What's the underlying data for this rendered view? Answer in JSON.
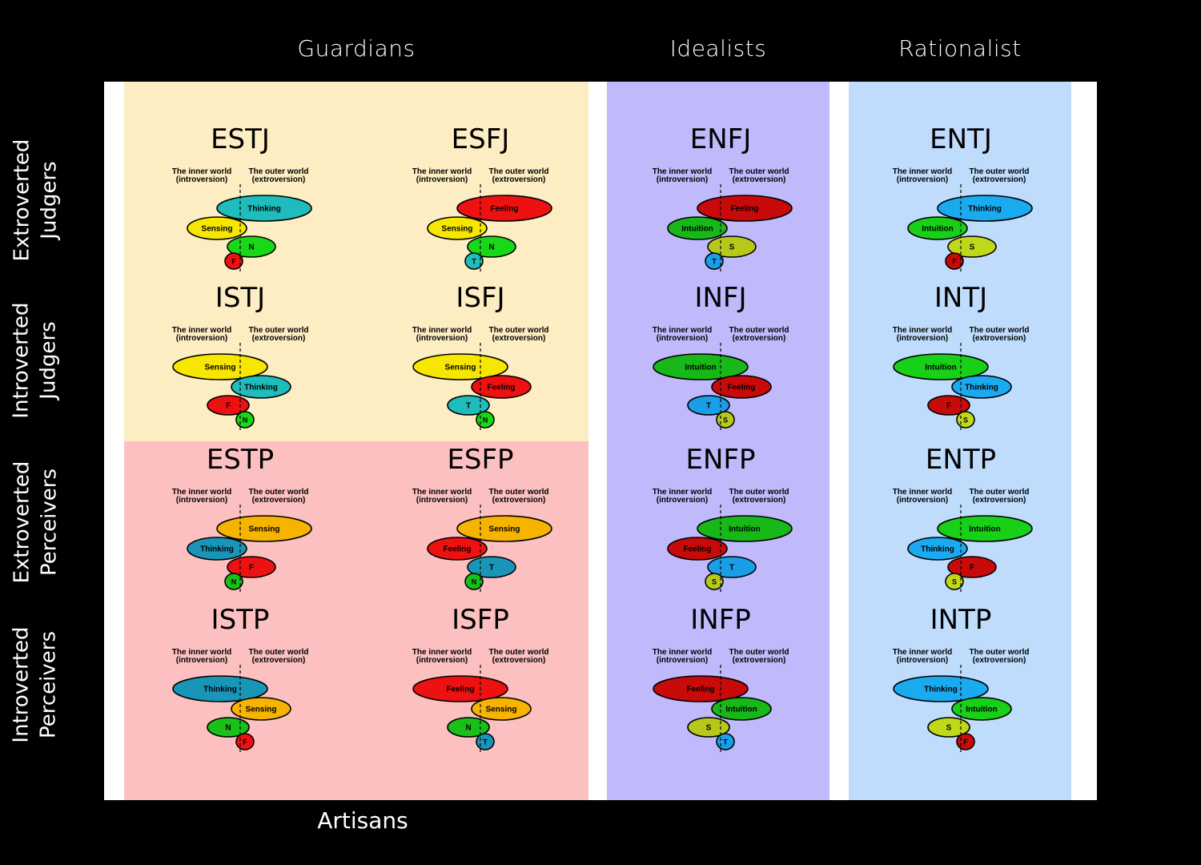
{
  "columns": {
    "guardians": "Guardians",
    "idealists": "Idealists",
    "rationalist": "Rationalist",
    "artisans": "Artisans"
  },
  "rows": [
    {
      "line1": "Extroverted",
      "line2": "Judgers"
    },
    {
      "line1": "Introverted",
      "line2": "Judgers"
    },
    {
      "line1": "Extroverted",
      "line2": "Perceivers"
    },
    {
      "line1": "Introverted",
      "line2": "Perceivers"
    }
  ],
  "world_labels": {
    "inner_line1": "The inner world",
    "inner_line2": "(introversion)",
    "outer_line1": "The outer world",
    "outer_line2": "(extroversion)"
  },
  "function_colors": {
    "Thinking": "#1fbcbc",
    "Sensing": "#f6e600",
    "Intuition": "#18d818",
    "Feeling": "#ee1111",
    "T": "#1fbcbc",
    "S": "#f6e600",
    "N": "#18d818",
    "F": "#ee1111"
  },
  "zone_colors": {
    "guardians": "#fdedc3",
    "artisans": "#fdc0c0",
    "idealists": "#c0bafd",
    "rationalist": "#c0dcfd"
  },
  "palettes": {
    "guardians": {
      "T": "#1fbcbc",
      "S": "#f6e600",
      "N": "#18d818",
      "F": "#ee1111"
    },
    "artisans": {
      "T": "#1995b8",
      "S": "#f6b400",
      "N": "#18c018",
      "F": "#ee1111"
    },
    "idealists": {
      "T": "#1a9ee8",
      "S": "#b8c81a",
      "N": "#18b818",
      "F": "#c80a0a"
    },
    "rationalist": {
      "T": "#1aaaf0",
      "S": "#c0d81a",
      "N": "#18d018",
      "F": "#c80a0a"
    }
  },
  "types": [
    {
      "code": "ESTJ",
      "group": "guardians",
      "dominant": {
        "label": "Thinking",
        "fn": "T",
        "side": "outer"
      },
      "auxiliary": {
        "label": "Sensing",
        "fn": "S",
        "side": "inner"
      },
      "tertiary": {
        "label": "N",
        "fn": "N",
        "side": "outer"
      },
      "inferior": {
        "label": "F",
        "fn": "F",
        "side": "inner"
      }
    },
    {
      "code": "ESFJ",
      "group": "guardians",
      "dominant": {
        "label": "Feeling",
        "fn": "F",
        "side": "outer"
      },
      "auxiliary": {
        "label": "Sensing",
        "fn": "S",
        "side": "inner"
      },
      "tertiary": {
        "label": "N",
        "fn": "N",
        "side": "outer"
      },
      "inferior": {
        "label": "T",
        "fn": "T",
        "side": "inner"
      }
    },
    {
      "code": "ENFJ",
      "group": "idealists",
      "dominant": {
        "label": "Feeling",
        "fn": "F",
        "side": "outer"
      },
      "auxiliary": {
        "label": "Intuition",
        "fn": "N",
        "side": "inner"
      },
      "tertiary": {
        "label": "S",
        "fn": "S",
        "side": "outer"
      },
      "inferior": {
        "label": "T",
        "fn": "T",
        "side": "inner"
      }
    },
    {
      "code": "ENTJ",
      "group": "rationalist",
      "dominant": {
        "label": "Thinking",
        "fn": "T",
        "side": "outer"
      },
      "auxiliary": {
        "label": "Intuition",
        "fn": "N",
        "side": "inner"
      },
      "tertiary": {
        "label": "S",
        "fn": "S",
        "side": "outer"
      },
      "inferior": {
        "label": "F",
        "fn": "F",
        "side": "inner"
      }
    },
    {
      "code": "ISTJ",
      "group": "guardians",
      "dominant": {
        "label": "Sensing",
        "fn": "S",
        "side": "inner"
      },
      "auxiliary": {
        "label": "Thinking",
        "fn": "T",
        "side": "outer"
      },
      "tertiary": {
        "label": "F",
        "fn": "F",
        "side": "inner"
      },
      "inferior": {
        "label": "N",
        "fn": "N",
        "side": "outer"
      }
    },
    {
      "code": "ISFJ",
      "group": "guardians",
      "dominant": {
        "label": "Sensing",
        "fn": "S",
        "side": "inner"
      },
      "auxiliary": {
        "label": "Feeling",
        "fn": "F",
        "side": "outer"
      },
      "tertiary": {
        "label": "T",
        "fn": "T",
        "side": "inner"
      },
      "inferior": {
        "label": "N",
        "fn": "N",
        "side": "outer"
      }
    },
    {
      "code": "INFJ",
      "group": "idealists",
      "dominant": {
        "label": "Intuition",
        "fn": "N",
        "side": "inner"
      },
      "auxiliary": {
        "label": "Feeling",
        "fn": "F",
        "side": "outer"
      },
      "tertiary": {
        "label": "T",
        "fn": "T",
        "side": "inner"
      },
      "inferior": {
        "label": "S",
        "fn": "S",
        "side": "outer"
      }
    },
    {
      "code": "INTJ",
      "group": "rationalist",
      "dominant": {
        "label": "Intuition",
        "fn": "N",
        "side": "inner"
      },
      "auxiliary": {
        "label": "Thinking",
        "fn": "T",
        "side": "outer"
      },
      "tertiary": {
        "label": "F",
        "fn": "F",
        "side": "inner"
      },
      "inferior": {
        "label": "S",
        "fn": "S",
        "side": "outer"
      }
    },
    {
      "code": "ESTP",
      "group": "artisans",
      "dominant": {
        "label": "Sensing",
        "fn": "S",
        "side": "outer"
      },
      "auxiliary": {
        "label": "Thinking",
        "fn": "T",
        "side": "inner"
      },
      "tertiary": {
        "label": "F",
        "fn": "F",
        "side": "outer"
      },
      "inferior": {
        "label": "N",
        "fn": "N",
        "side": "inner"
      }
    },
    {
      "code": "ESFP",
      "group": "artisans",
      "dominant": {
        "label": "Sensing",
        "fn": "S",
        "side": "outer"
      },
      "auxiliary": {
        "label": "Feeling",
        "fn": "F",
        "side": "inner"
      },
      "tertiary": {
        "label": "T",
        "fn": "T",
        "side": "outer"
      },
      "inferior": {
        "label": "N",
        "fn": "N",
        "side": "inner"
      }
    },
    {
      "code": "ENFP",
      "group": "idealists",
      "dominant": {
        "label": "Intuition",
        "fn": "N",
        "side": "outer"
      },
      "auxiliary": {
        "label": "Feeling",
        "fn": "F",
        "side": "inner"
      },
      "tertiary": {
        "label": "T",
        "fn": "T",
        "side": "outer"
      },
      "inferior": {
        "label": "S",
        "fn": "S",
        "side": "inner"
      }
    },
    {
      "code": "ENTP",
      "group": "rationalist",
      "dominant": {
        "label": "Intuition",
        "fn": "N",
        "side": "outer"
      },
      "auxiliary": {
        "label": "Thinking",
        "fn": "T",
        "side": "inner"
      },
      "tertiary": {
        "label": "F",
        "fn": "F",
        "side": "outer"
      },
      "inferior": {
        "label": "S",
        "fn": "S",
        "side": "inner"
      }
    },
    {
      "code": "ISTP",
      "group": "artisans",
      "dominant": {
        "label": "Thinking",
        "fn": "T",
        "side": "inner"
      },
      "auxiliary": {
        "label": "Sensing",
        "fn": "S",
        "side": "outer"
      },
      "tertiary": {
        "label": "N",
        "fn": "N",
        "side": "inner"
      },
      "inferior": {
        "label": "F",
        "fn": "F",
        "side": "outer"
      }
    },
    {
      "code": "ISFP",
      "group": "artisans",
      "dominant": {
        "label": "Feeling",
        "fn": "F",
        "side": "inner"
      },
      "auxiliary": {
        "label": "Sensing",
        "fn": "S",
        "side": "outer"
      },
      "tertiary": {
        "label": "N",
        "fn": "N",
        "side": "inner"
      },
      "inferior": {
        "label": "T",
        "fn": "T",
        "side": "outer"
      }
    },
    {
      "code": "INFP",
      "group": "idealists",
      "dominant": {
        "label": "Feeling",
        "fn": "F",
        "side": "inner"
      },
      "auxiliary": {
        "label": "Intuition",
        "fn": "N",
        "side": "outer"
      },
      "tertiary": {
        "label": "S",
        "fn": "S",
        "side": "inner"
      },
      "inferior": {
        "label": "T",
        "fn": "T",
        "side": "outer"
      }
    },
    {
      "code": "INTP",
      "group": "rationalist",
      "dominant": {
        "label": "Thinking",
        "fn": "T",
        "side": "inner"
      },
      "auxiliary": {
        "label": "Intuition",
        "fn": "N",
        "side": "outer"
      },
      "tertiary": {
        "label": "S",
        "fn": "S",
        "side": "inner"
      },
      "inferior": {
        "label": "F",
        "fn": "F",
        "side": "outer"
      }
    }
  ]
}
